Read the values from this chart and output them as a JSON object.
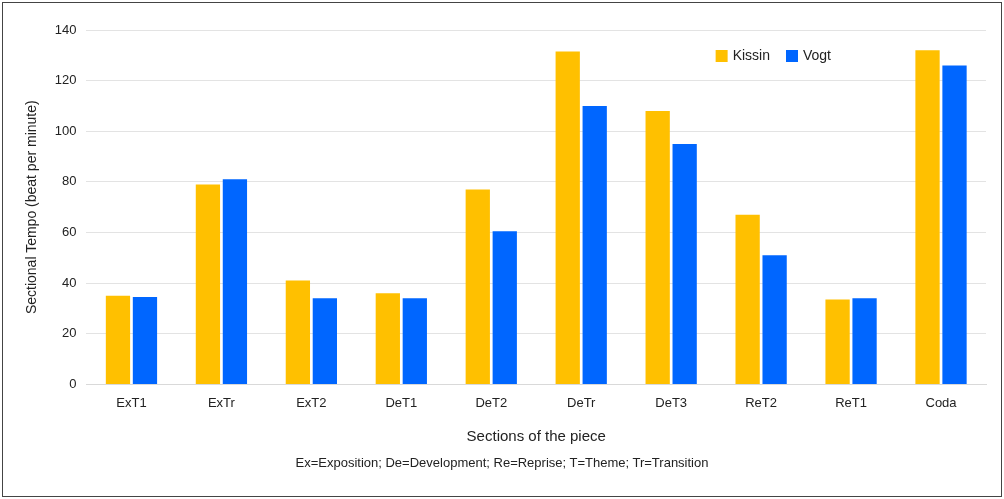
{
  "chart_data": {
    "type": "bar",
    "xlabel": "Sections of the piece",
    "ylabel": "Sectional Tempo (beat per minute)",
    "categories": [
      "ExT1",
      "ExTr",
      "ExT2",
      "DeT1",
      "DeT2",
      "DeTr",
      "DeT3",
      "ReT2",
      "ReT1",
      "Coda"
    ],
    "series": [
      {
        "name": "Kissin",
        "color": "#ffc000",
        "values": [
          35,
          79,
          41,
          36,
          77,
          131.5,
          108,
          67,
          33.5,
          132
        ]
      },
      {
        "name": "Vogt",
        "color": "#0066ff",
        "values": [
          34.5,
          81,
          34,
          34,
          60.5,
          110,
          95,
          51,
          34,
          126
        ]
      }
    ],
    "ylim": [
      0,
      140
    ],
    "yticks": [
      0,
      20,
      40,
      60,
      80,
      100,
      120,
      140
    ],
    "grid": "y",
    "legend": "top right",
    "annotations": [
      "Ex=Exposition; De=Development; Re=Reprise; T=Theme; Tr=Transition"
    ]
  }
}
